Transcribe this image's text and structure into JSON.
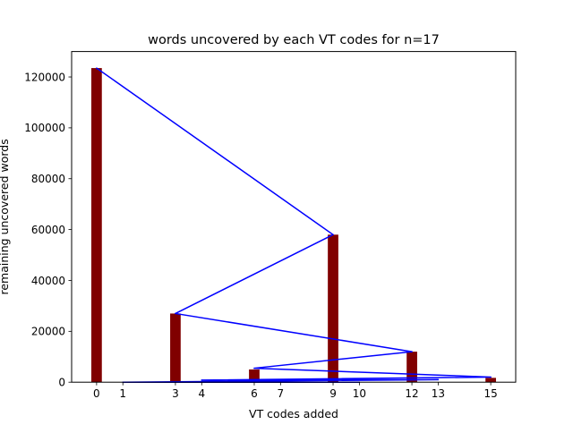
{
  "chart_data": {
    "type": "bar",
    "title": "words uncovered by each VT codes for n=17",
    "xlabel": "VT codes added",
    "ylabel": "remaining uncovered words",
    "xlim": [
      -0.95,
      15.95
    ],
    "ylim": [
      0,
      130000
    ],
    "xticks": [
      0,
      1,
      3,
      4,
      6,
      7,
      9,
      10,
      12,
      13,
      15
    ],
    "yticks": [
      0,
      20000,
      40000,
      60000,
      80000,
      100000,
      120000
    ],
    "bars": {
      "color": "#800000",
      "x": [
        0,
        1,
        3,
        4,
        6,
        7,
        9,
        10,
        12,
        13,
        15
      ],
      "values": [
        123500,
        0,
        27000,
        0,
        5000,
        0,
        58000,
        0,
        12000,
        0,
        1700
      ]
    },
    "line": {
      "color": "#0000ff",
      "points": [
        [
          0,
          123500
        ],
        [
          9,
          58000
        ],
        [
          3,
          27000
        ],
        [
          12,
          12000
        ],
        [
          6,
          5500
        ],
        [
          15,
          2000
        ],
        [
          4,
          800
        ],
        [
          13,
          1000
        ],
        [
          1,
          0
        ],
        [
          10,
          0
        ],
        [
          7,
          0
        ]
      ]
    },
    "grid": false,
    "legend": "none"
  }
}
